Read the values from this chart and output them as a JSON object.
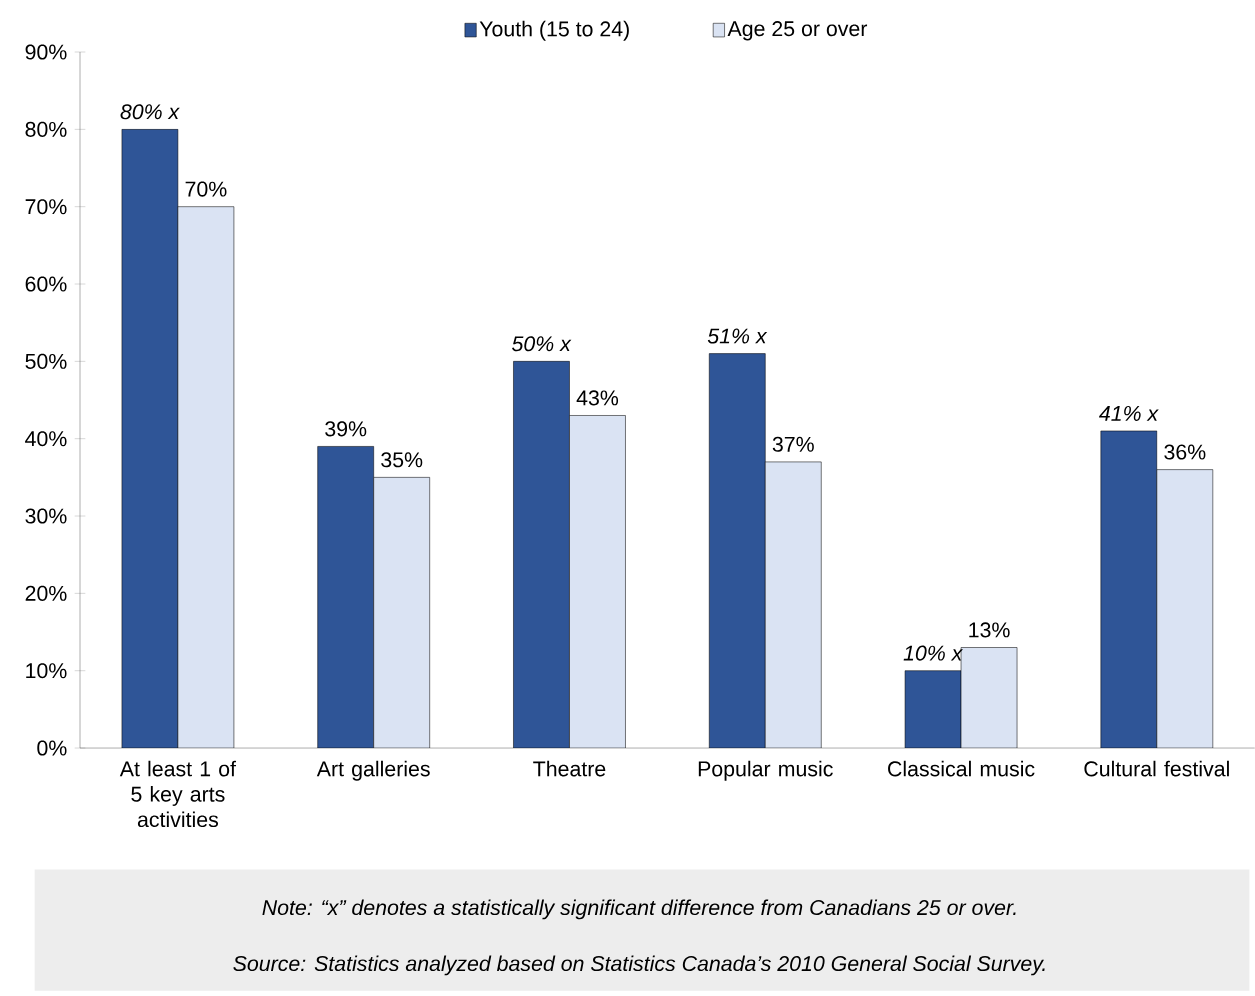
{
  "chart_data": {
    "type": "bar",
    "categories": [
      "At least 1 of 5 key arts activities",
      "Art galleries",
      "Theatre",
      "Popular music",
      "Classical music",
      "Cultural festival"
    ],
    "series": [
      {
        "name": "Youth (15 to 24)",
        "color": "#2F5597",
        "values": [
          80,
          39,
          50,
          51,
          10,
          41
        ],
        "value_labels": [
          "*80% x*",
          "39%",
          "*50% x*",
          "*51% x*",
          "*10% x*",
          "*41% x*"
        ]
      },
      {
        "name": "Age 25 or over",
        "color": "#DAE3F3",
        "values": [
          70,
          35,
          43,
          37,
          13,
          36
        ],
        "value_labels": [
          "70%",
          "35%",
          "43%",
          "37%",
          "13%",
          "36%"
        ]
      }
    ],
    "ylim": [
      0,
      90
    ],
    "yticks": [
      {
        "value": 0,
        "label": "0%"
      },
      {
        "value": 10,
        "label": "10%"
      },
      {
        "value": 20,
        "label": "20%"
      },
      {
        "value": 30,
        "label": "30%"
      },
      {
        "value": 40,
        "label": "40%"
      },
      {
        "value": 50,
        "label": "50%"
      },
      {
        "value": 60,
        "label": "60%"
      },
      {
        "value": 70,
        "label": "70%"
      },
      {
        "value": 80,
        "label": "80%"
      },
      {
        "value": 90,
        "label": "90%"
      }
    ],
    "grid": false,
    "legend": "top",
    "annotations": [
      "Note: “x” denotes a statistically significant difference from Canadians 25 or over.",
      "Source: Statistics analyzed based on Statistics Canada’s 2010 General Social Survey."
    ]
  }
}
